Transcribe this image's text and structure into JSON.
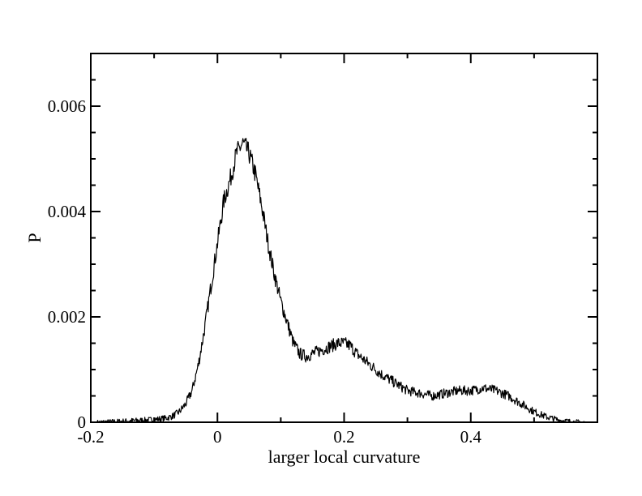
{
  "chart_data": {
    "type": "line",
    "title": "",
    "xlabel": "larger local curvature",
    "ylabel": "P",
    "xlim": [
      -0.2,
      0.6
    ],
    "ylim": [
      0,
      0.007
    ],
    "x_ticks": [
      -0.2,
      0,
      0.2,
      0.4
    ],
    "x_tick_labels": [
      "-0.2",
      "0",
      "0.2",
      "0.4"
    ],
    "y_ticks": [
      0,
      0.002,
      0.004,
      0.006
    ],
    "y_tick_labels": [
      "0",
      "0.002",
      "0.004",
      "0.006"
    ],
    "grid": false,
    "legend": "none",
    "line_color": "#000000",
    "series": [
      {
        "x": [
          -0.19,
          -0.15,
          -0.1,
          -0.08,
          -0.07,
          -0.06,
          -0.05,
          -0.04,
          -0.03,
          -0.02,
          -0.01,
          0.0,
          0.01,
          0.02,
          0.03,
          0.04,
          0.05,
          0.06,
          0.07,
          0.08,
          0.09,
          0.1,
          0.11,
          0.12,
          0.13,
          0.14,
          0.15,
          0.16,
          0.17,
          0.18,
          0.19,
          0.2,
          0.21,
          0.22,
          0.23,
          0.24,
          0.25,
          0.26,
          0.28,
          0.3,
          0.32,
          0.34,
          0.36,
          0.38,
          0.4,
          0.42,
          0.44,
          0.46,
          0.48,
          0.5,
          0.52,
          0.54,
          0.56,
          0.58
        ],
        "values": [
          0.0,
          2e-05,
          5e-05,
          8e-05,
          0.00012,
          0.0002,
          0.00035,
          0.0006,
          0.0011,
          0.0018,
          0.0026,
          0.0034,
          0.0042,
          0.0046,
          0.0051,
          0.0053,
          0.0051,
          0.0047,
          0.0041,
          0.0034,
          0.0028,
          0.0023,
          0.0019,
          0.0015,
          0.0013,
          0.00125,
          0.0013,
          0.00135,
          0.0014,
          0.00145,
          0.0015,
          0.0015,
          0.00145,
          0.0013,
          0.0012,
          0.0011,
          0.001,
          0.0009,
          0.00075,
          0.0006,
          0.00055,
          0.0005,
          0.00055,
          0.0006,
          0.0006,
          0.00065,
          0.0006,
          0.0005,
          0.00035,
          0.0002,
          0.0001,
          4e-05,
          1e-05,
          0.0
        ]
      }
    ]
  }
}
